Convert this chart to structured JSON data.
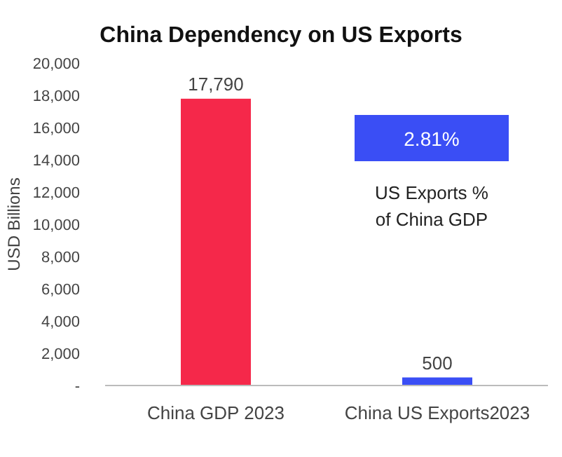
{
  "chart_data": {
    "type": "bar",
    "title": "China Dependency on US Exports",
    "ylabel": "USD Billions",
    "categories": [
      "China GDP 2023",
      "China US Exports2023"
    ],
    "values": [
      17790,
      500
    ],
    "colors": [
      "#f5284a",
      "#3a4ef5"
    ],
    "value_labels": [
      "17,790",
      "500"
    ],
    "ylim": [
      0,
      20000
    ],
    "yticks": [
      {
        "value": 0,
        "label": "-"
      },
      {
        "value": 2000,
        "label": "2,000"
      },
      {
        "value": 4000,
        "label": "4,000"
      },
      {
        "value": 6000,
        "label": "6,000"
      },
      {
        "value": 8000,
        "label": "8,000"
      },
      {
        "value": 10000,
        "label": "10,000"
      },
      {
        "value": 12000,
        "label": "12,000"
      },
      {
        "value": 14000,
        "label": "14,000"
      },
      {
        "value": 16000,
        "label": "16,000"
      },
      {
        "value": 18000,
        "label": "18,000"
      },
      {
        "value": 20000,
        "label": "20,000"
      }
    ],
    "annotations": [
      "2.81%",
      "US Exports %\nof China GDP"
    ]
  }
}
